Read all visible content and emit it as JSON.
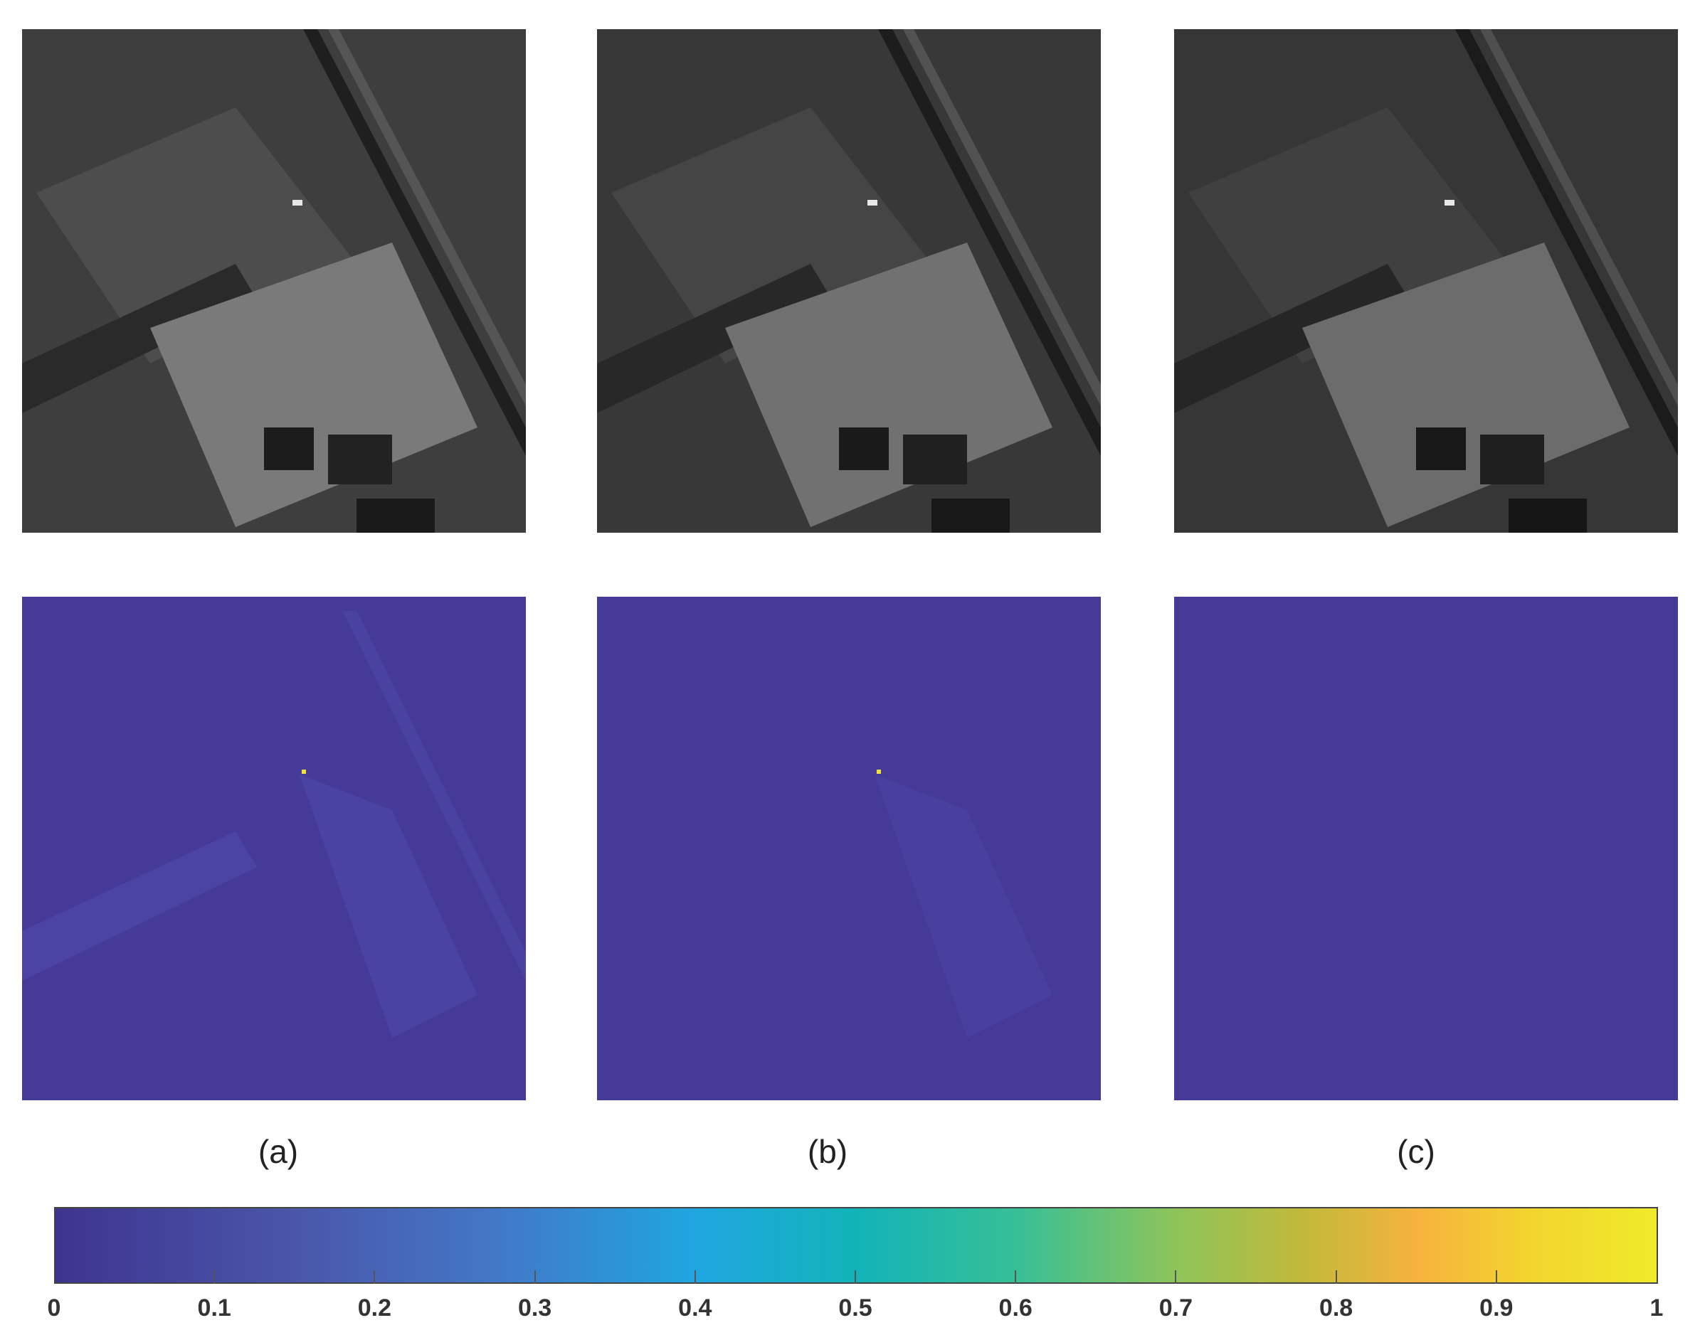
{
  "panels": [
    {
      "caption": "(a)"
    },
    {
      "caption": "(b)"
    },
    {
      "caption": "(c)"
    }
  ],
  "colorbar": {
    "ticks": [
      "0",
      "0.1",
      "0.2",
      "0.3",
      "0.4",
      "0.5",
      "0.6",
      "0.7",
      "0.8",
      "0.9",
      "1"
    ],
    "range": [
      0,
      1
    ],
    "colormap": "parula"
  },
  "colors": {
    "error_map_background": "#463a99",
    "hot_pixel": "#f0e23a"
  }
}
